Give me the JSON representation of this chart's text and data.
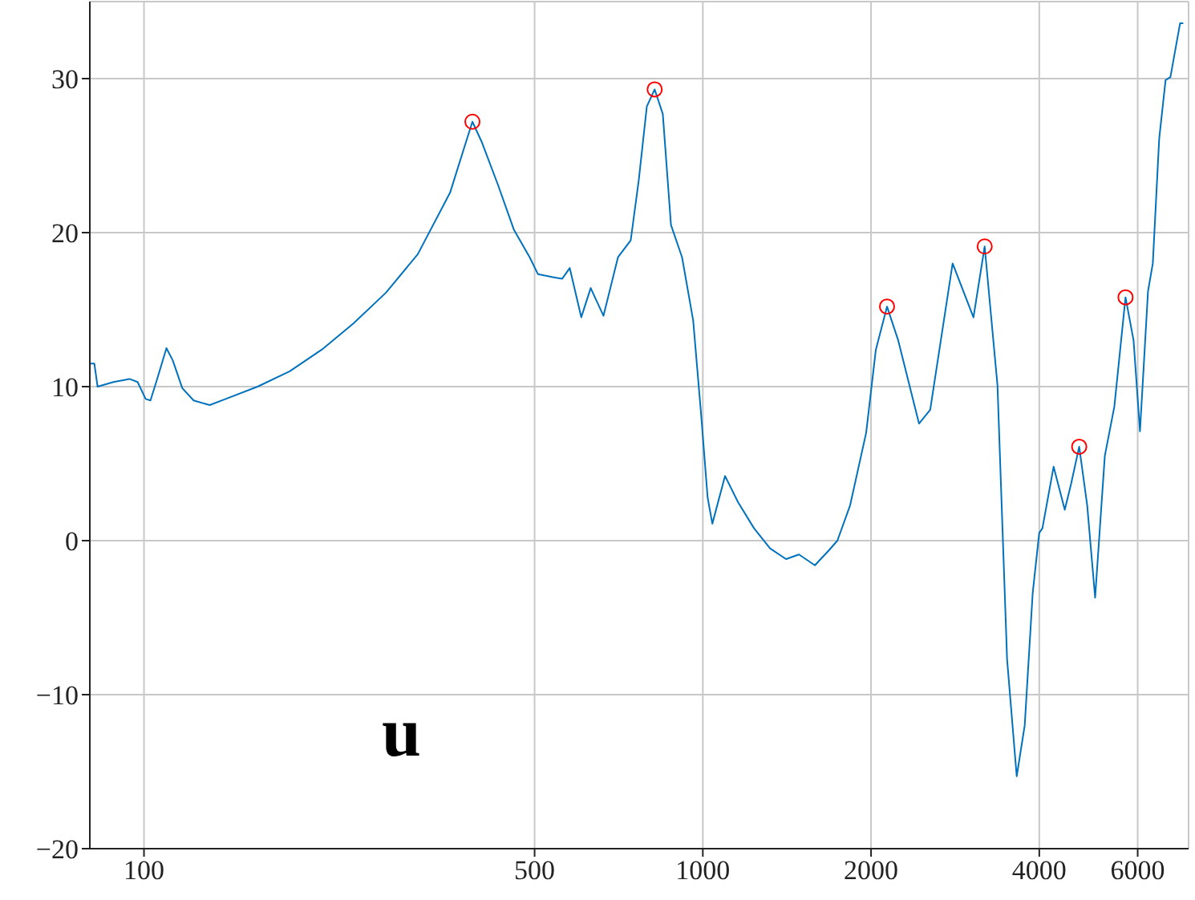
{
  "chart_data": {
    "type": "line",
    "xlim": [
      80,
      7400
    ],
    "xticks": [
      100,
      500,
      1000,
      2000,
      4000,
      6000
    ],
    "ylim": [
      -20,
      35
    ],
    "yticks": [
      -20,
      -10,
      0,
      10,
      20,
      30
    ],
    "log": "x",
    "grid": true,
    "legend": false,
    "annotations": [
      "u"
    ],
    "series": [
      {
        "color": "#0072bd",
        "marker": "none",
        "x": [
          80,
          81.5,
          82.6,
          88.2,
          94.2,
          97.4,
          100.7,
          102.7,
          105.4,
          109.7,
          112.6,
          117.1,
          122.7,
          131.1,
          140,
          159.7,
          182.3,
          208,
          237,
          271,
          309,
          353,
          377,
          387,
          402,
          430,
          459,
          490,
          507,
          541,
          560,
          578,
          606,
          630,
          664,
          705,
          743,
          768,
          794,
          820,
          848,
          877,
          918,
          961,
          993,
          1020,
          1040,
          1096,
          1156,
          1235,
          1319,
          1409,
          1486,
          1587,
          1684,
          1741,
          1835,
          1960,
          2040,
          2136,
          2237,
          2437,
          2552,
          2799,
          3050,
          3194,
          3367,
          3503,
          3645,
          3767,
          3893,
          3999,
          4052,
          4243,
          4443,
          4561,
          4715,
          4873,
          5035,
          5240,
          5450,
          5707,
          5899,
          6057,
          6261,
          6386,
          6556,
          6731,
          6866,
          7146,
          7240
        ],
        "values": [
          11.5,
          11.5,
          10.0,
          10.3,
          10.5,
          10.3,
          9.2,
          9.1,
          10.4,
          12.5,
          11.7,
          9.9,
          9.1,
          8.8,
          9.2,
          10.0,
          11.0,
          12.4,
          14.1,
          16.1,
          18.6,
          22.6,
          25.9,
          27.2,
          25.9,
          23.1,
          20.2,
          18.4,
          17.3,
          17.1,
          17.0,
          17.7,
          14.5,
          16.4,
          14.6,
          18.4,
          19.5,
          23.4,
          28.2,
          29.3,
          27.7,
          20.5,
          18.4,
          14.3,
          8.2,
          2.8,
          1.1,
          4.2,
          2.5,
          0.8,
          -0.5,
          -1.2,
          -0.9,
          -1.6,
          -0.6,
          0.0,
          2.3,
          7.0,
          12.4,
          15.2,
          13.0,
          7.6,
          8.5,
          18.0,
          14.5,
          19.1,
          10.1,
          -7.7,
          -15.3,
          -12.0,
          -3.4,
          0.5,
          0.8,
          4.8,
          2.0,
          3.7,
          6.1,
          2.3,
          -3.7,
          5.5,
          8.7,
          15.8,
          13.0,
          7.1,
          16.2,
          18.0,
          26.1,
          29.9,
          30.1,
          33.6,
          33.6
        ]
      },
      {
        "type": "scatter",
        "color": "#ff0000",
        "marker": "circle",
        "x": [
          387,
          820,
          2136,
          3194,
          4715,
          5707
        ],
        "values": [
          27.2,
          29.3,
          15.2,
          19.1,
          6.1,
          15.8
        ]
      }
    ]
  }
}
